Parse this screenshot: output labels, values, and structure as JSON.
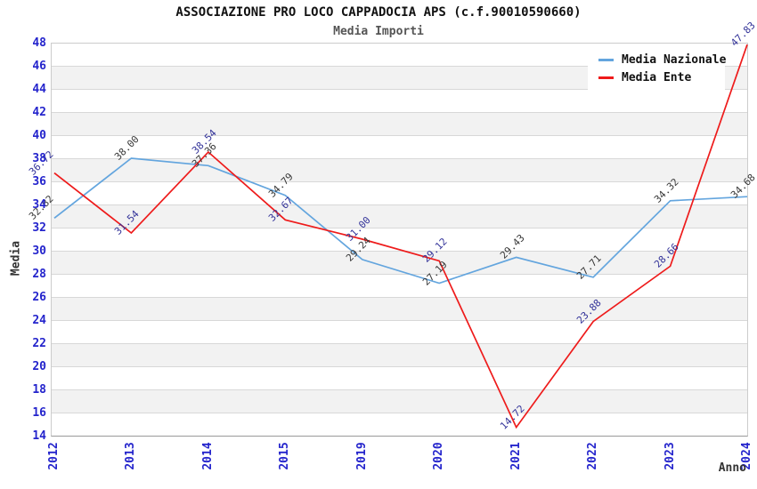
{
  "header": {
    "title": "ASSOCIAZIONE PRO LOCO CAPPADOCIA APS (c.f.90010590660)",
    "subtitle": "Media Importi"
  },
  "axes": {
    "y_title": "Media",
    "x_title": "Anno"
  },
  "legend": {
    "position": "top-right",
    "items": [
      {
        "label": "Media Nazionale",
        "color": "#63a5de"
      },
      {
        "label": "Media Ente",
        "color": "#ee1b1b"
      }
    ]
  },
  "chart_data": {
    "type": "line",
    "title": "ASSOCIAZIONE PRO LOCO CAPPADOCIA APS (c.f.90010590660)",
    "subtitle": "Media Importi",
    "xlabel": "Anno",
    "ylabel": "Media",
    "categories": [
      "2012",
      "2013",
      "2014",
      "2015",
      "2019",
      "2020",
      "2021",
      "2022",
      "2023",
      "2024"
    ],
    "series": [
      {
        "name": "Media Nazionale",
        "color": "#63a5de",
        "label_color": "#383838",
        "values": [
          32.82,
          38.0,
          37.36,
          34.79,
          29.24,
          27.19,
          29.43,
          27.71,
          34.32,
          34.68
        ]
      },
      {
        "name": "Media Ente",
        "color": "#ee1b1b",
        "label_color": "#333399",
        "values": [
          36.72,
          31.54,
          38.54,
          32.67,
          31.0,
          29.12,
          14.72,
          23.88,
          28.66,
          47.83
        ]
      }
    ],
    "ylim": [
      14,
      48
    ],
    "ytick_step": 2,
    "grid": true,
    "band_colors": [
      "#ffffff",
      "#f2f2f2"
    ],
    "tick_label_color": "#2424cc",
    "legend_position": "top-right"
  }
}
